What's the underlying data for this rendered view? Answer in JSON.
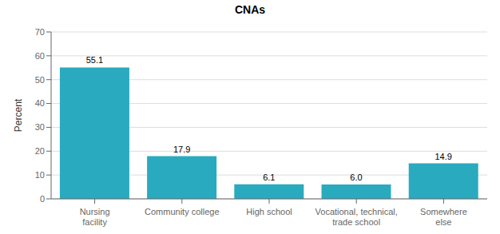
{
  "chart_data": {
    "type": "bar",
    "title": "CNAs",
    "categories": [
      "Nursing\nfacility",
      "Community college",
      "High school",
      "Vocational, technical,\ntrade school",
      "Somewhere\nelse"
    ],
    "values": [
      55.1,
      17.9,
      6.1,
      6.0,
      14.9
    ],
    "value_labels": [
      "55.1",
      "17.9",
      "6.1",
      "6.0",
      "14.9"
    ],
    "color": "#29aabf",
    "ylabel": "Percent",
    "ylim": [
      0,
      70
    ],
    "yticks": [
      0,
      10,
      20,
      30,
      40,
      50,
      60,
      70
    ],
    "grid": true,
    "data_labels": true
  }
}
